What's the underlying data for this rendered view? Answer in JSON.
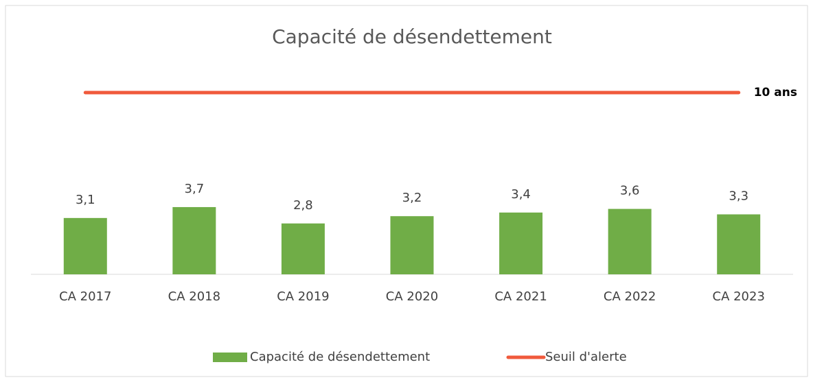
{
  "chart_data": {
    "type": "bar",
    "title": "Capacité de désendettement",
    "categories": [
      "CA 2017",
      "CA 2018",
      "CA 2019",
      "CA 2020",
      "CA 2021",
      "CA 2022",
      "CA 2023"
    ],
    "series": [
      {
        "name": "Capacité de désendettement",
        "color": "#70ad47",
        "type": "bar",
        "values": [
          3.1,
          3.7,
          2.8,
          3.2,
          3.4,
          3.6,
          3.3
        ],
        "value_labels": [
          "3,1",
          "3,7",
          "2,8",
          "3,2",
          "3,4",
          "3,6",
          "3,3"
        ]
      },
      {
        "name": "Seuil d'alerte",
        "color": "#f05a3c",
        "type": "line",
        "values": [
          10,
          10,
          10,
          10,
          10,
          10,
          10
        ]
      }
    ],
    "annotation": "10 ans",
    "ylim": [
      0,
      14
    ],
    "legend": "bottom"
  }
}
